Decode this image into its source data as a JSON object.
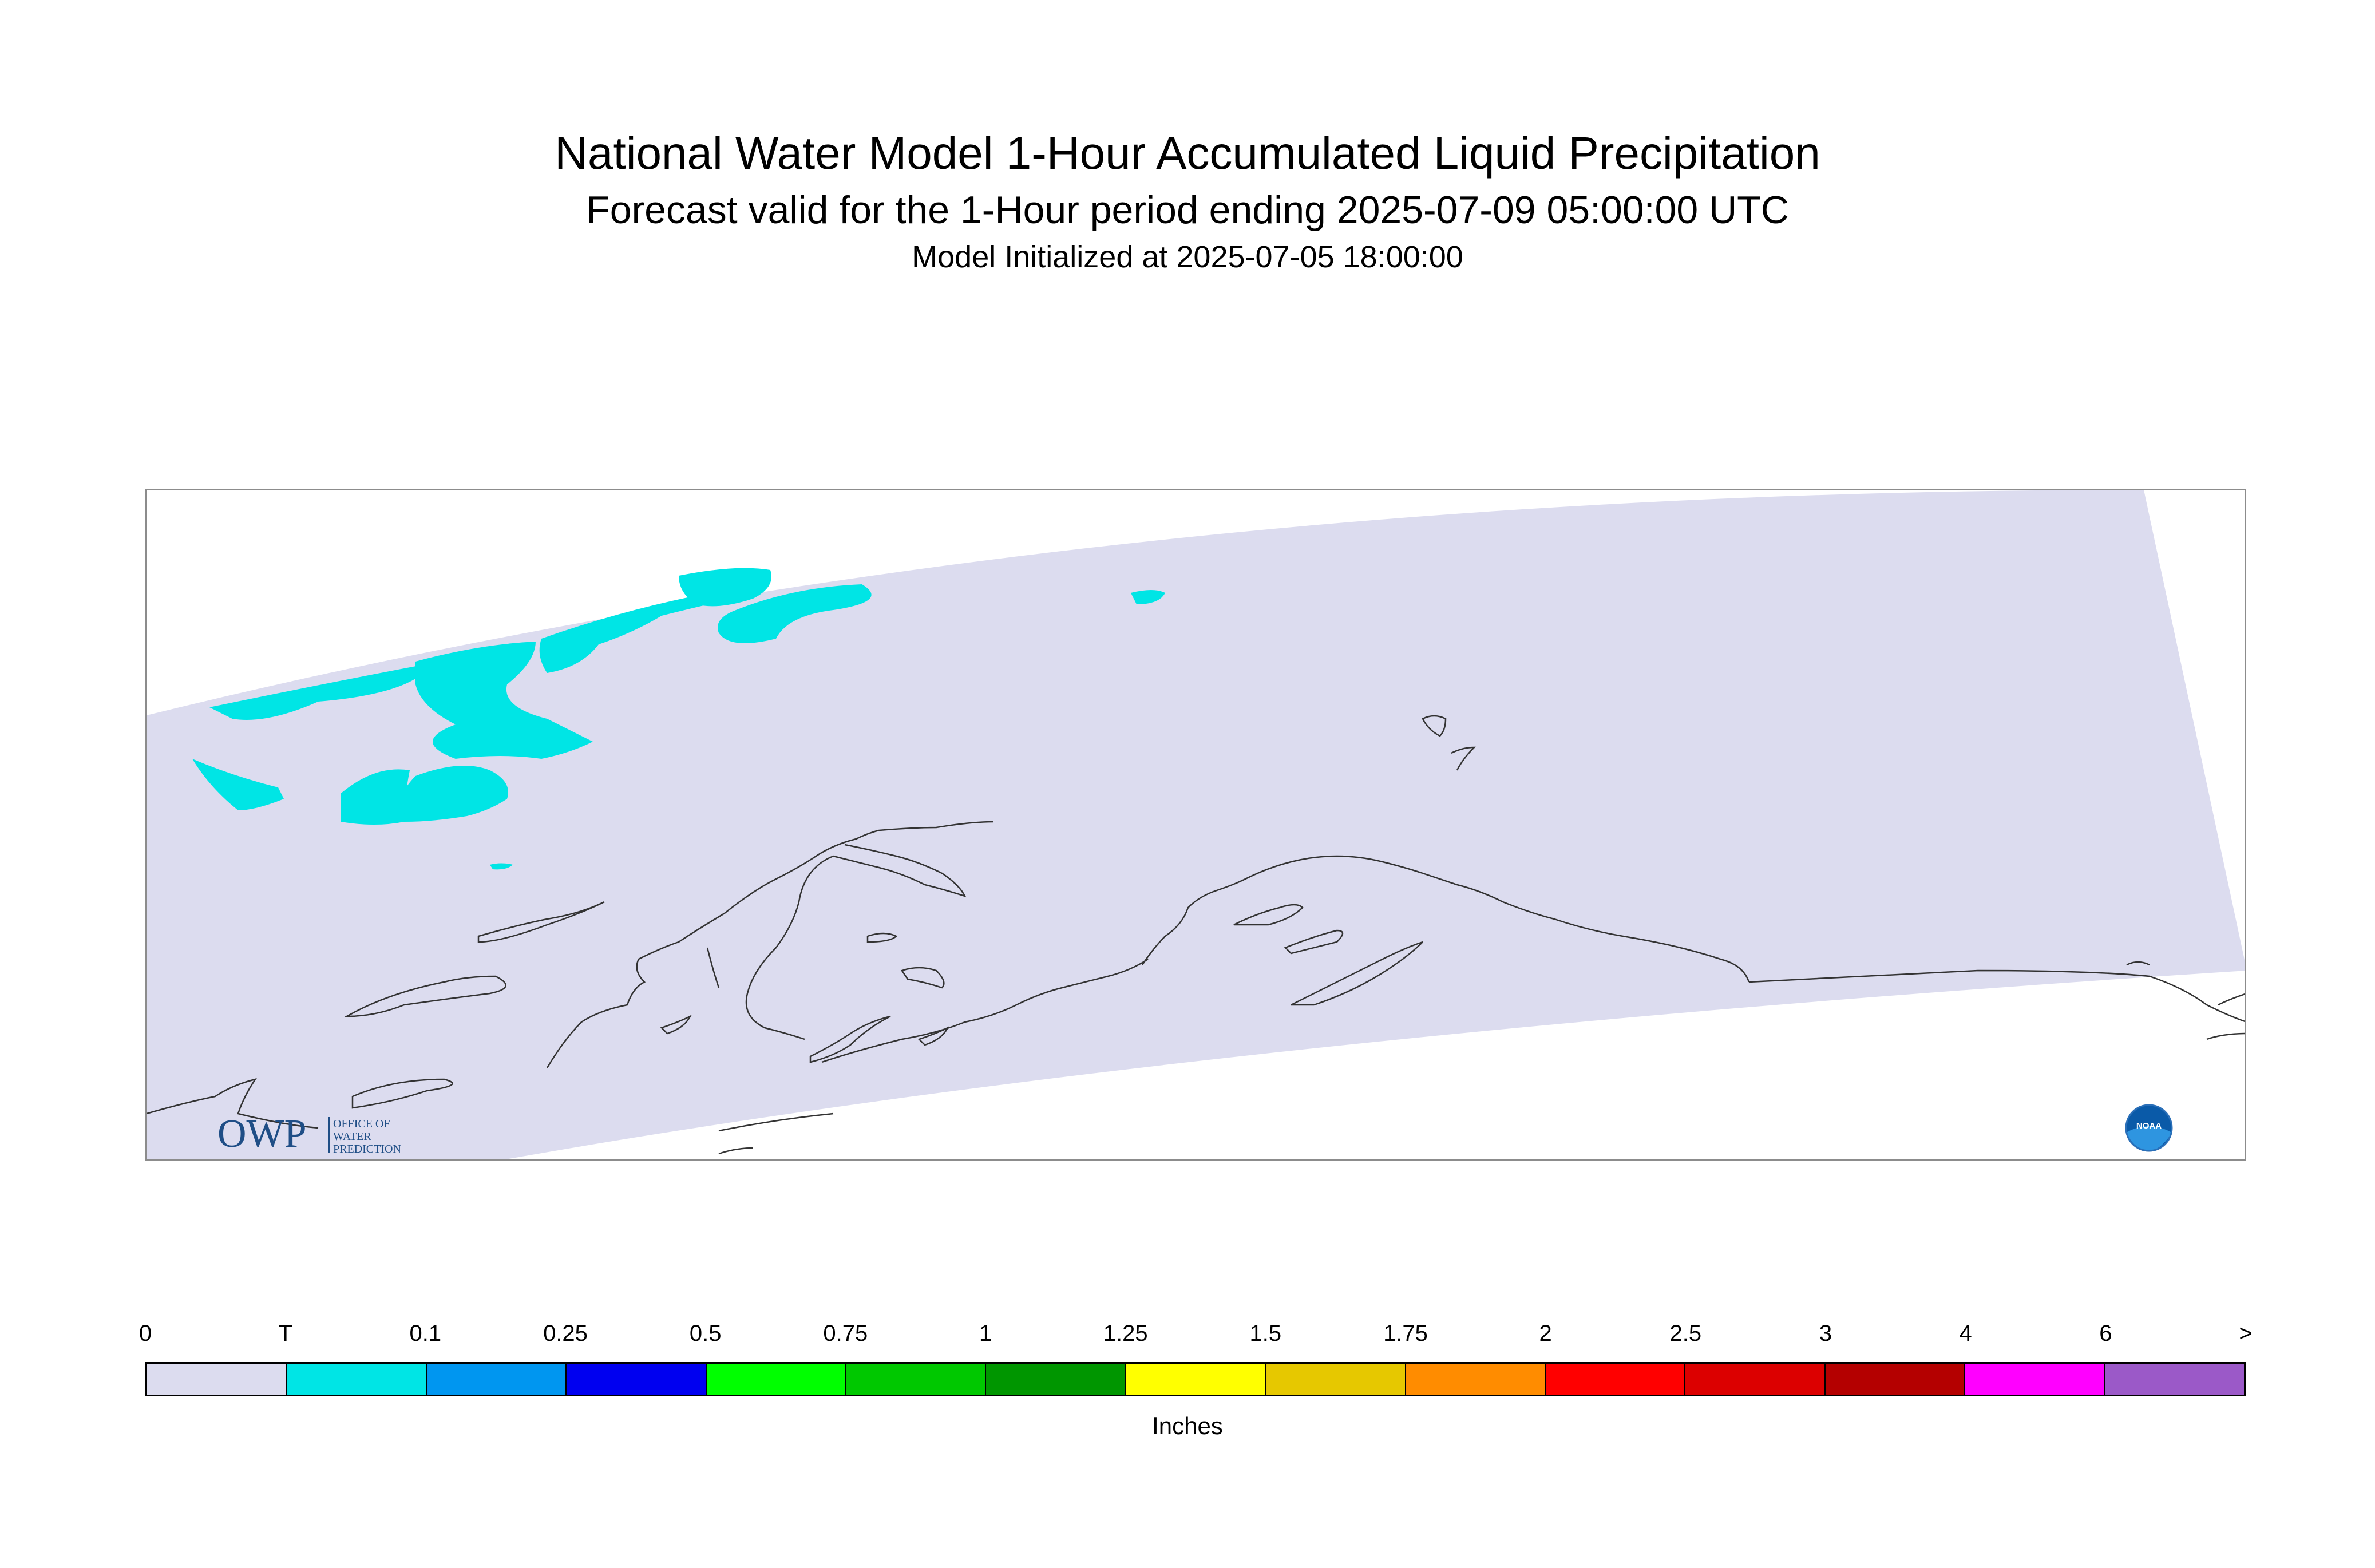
{
  "title": {
    "main": "National Water Model 1-Hour Accumulated Liquid Precipitation",
    "forecast": "Forecast valid for the 1-Hour period ending 2025-07-09 05:00:00 UTC",
    "init": "Model Initialized at 2025-07-05 18:00:00"
  },
  "map": {
    "domain_fill_color": "#dcdcef",
    "precip_trace_color": "#00e5e5",
    "coast_color": "#333333",
    "frame_color": "#8c8c8c"
  },
  "logos": {
    "owp": {
      "letters": "OWP",
      "line1": "OFFICE OF",
      "line2": "WATER",
      "line3": "PREDICTION"
    },
    "noaa": {
      "text": "NOAA"
    }
  },
  "legend": {
    "units": "Inches",
    "ticks": [
      "0",
      "T",
      "0.1",
      "0.25",
      "0.5",
      "0.75",
      "1",
      "1.25",
      "1.5",
      "1.75",
      "2",
      "2.5",
      "3",
      "4",
      "6",
      ">"
    ],
    "colors": [
      "#dcdcef",
      "#00e5e5",
      "#0096f0",
      "#0000f0",
      "#00ff00",
      "#00c800",
      "#009600",
      "#ffff00",
      "#e6c800",
      "#ff8c00",
      "#ff0000",
      "#dc0000",
      "#b40000",
      "#ff00ff",
      "#9b59c8"
    ]
  }
}
